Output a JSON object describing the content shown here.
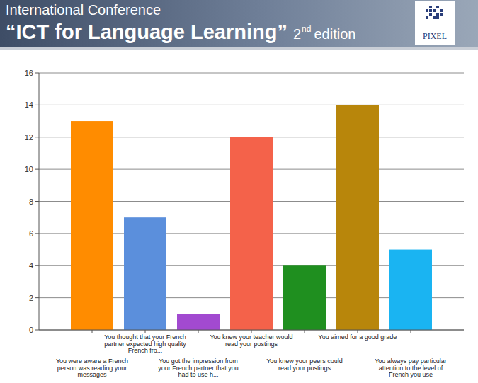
{
  "header": {
    "subtitle": "International Conference",
    "title": "“ICT for Language Learning”",
    "edition_number": "2",
    "edition_suffix": "nd",
    "edition_word": "edition",
    "logo": "PIXEL"
  },
  "chart_data": {
    "type": "bar",
    "categories": [
      "You were aware a French person was reading your messages",
      "You thought that your French partner expected high quality French fro...",
      "You got the impression from your French partner that you had to use h...",
      "You knew your teacher would read your postings",
      "You knew your peers could read your postings",
      "You aimed for a good grade",
      "You always pay particular attention to the level of French you use"
    ],
    "values": [
      13,
      7,
      1,
      12,
      4,
      14,
      5
    ],
    "colors": [
      "#ff8c00",
      "#5b8fdc",
      "#a24ad0",
      "#f4624a",
      "#1f8f1f",
      "#b8860b",
      "#1ab4f2"
    ],
    "ylim": [
      0,
      16
    ],
    "yticks": [
      0,
      2,
      4,
      6,
      8,
      10,
      12,
      14,
      16
    ],
    "grid": true
  }
}
